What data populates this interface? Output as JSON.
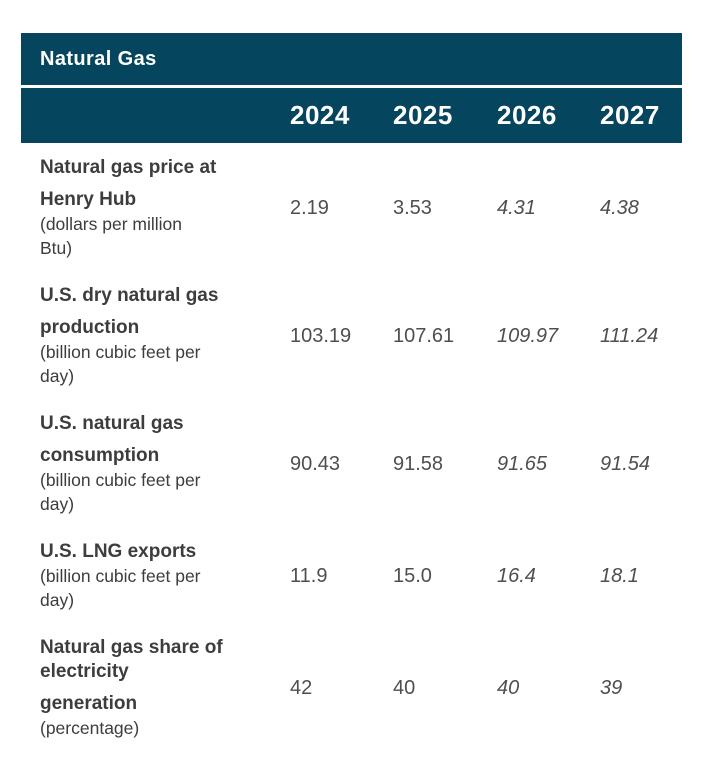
{
  "table": {
    "title": "Natural Gas",
    "theme": {
      "header_bg": "#05455e",
      "header_text": "#ffffff",
      "label_color": "#3d3d3d",
      "value_color": "#4f4f4f"
    },
    "columns": [
      {
        "year": "2024",
        "forecast": false
      },
      {
        "year": "2025",
        "forecast": false
      },
      {
        "year": "2026",
        "forecast": true
      },
      {
        "year": "2027",
        "forecast": true
      }
    ],
    "rows": [
      {
        "label_lines": [
          {
            "text": "Natural gas price at",
            "bold": true,
            "gap": false
          },
          {
            "text": "Henry Hub",
            "bold": true,
            "gap": true
          },
          {
            "text": "(dollars per million",
            "bold": false,
            "gap": false
          },
          {
            "text": "Btu)",
            "bold": false,
            "gap": false
          }
        ],
        "values": [
          "2.19",
          "3.53",
          "4.31",
          "4.38"
        ]
      },
      {
        "label_lines": [
          {
            "text": "U.S. dry natural gas",
            "bold": true,
            "gap": false
          },
          {
            "text": "production",
            "bold": true,
            "gap": true
          },
          {
            "text": "(billion cubic feet per",
            "bold": false,
            "gap": false
          },
          {
            "text": "day)",
            "bold": false,
            "gap": false
          }
        ],
        "values": [
          "103.19",
          "107.61",
          "109.97",
          "111.24"
        ]
      },
      {
        "label_lines": [
          {
            "text": "U.S. natural gas",
            "bold": true,
            "gap": false
          },
          {
            "text": "consumption",
            "bold": true,
            "gap": true
          },
          {
            "text": "(billion cubic feet per",
            "bold": false,
            "gap": false
          },
          {
            "text": "day)",
            "bold": false,
            "gap": false
          }
        ],
        "values": [
          "90.43",
          "91.58",
          "91.65",
          "91.54"
        ]
      },
      {
        "label_lines": [
          {
            "text": "U.S. LNG exports",
            "bold": true,
            "gap": false
          },
          {
            "text": "(billion cubic feet per",
            "bold": false,
            "gap": false
          },
          {
            "text": "day)",
            "bold": false,
            "gap": false
          }
        ],
        "values": [
          "11.9",
          "15.0",
          "16.4",
          "18.1"
        ]
      },
      {
        "label_lines": [
          {
            "text": "Natural gas share of",
            "bold": true,
            "gap": false
          },
          {
            "text": "electricity",
            "bold": true,
            "gap": false
          },
          {
            "text": "generation",
            "bold": true,
            "gap": true
          },
          {
            "text": "(percentage)",
            "bold": false,
            "gap": false
          }
        ],
        "values": [
          "42",
          "40",
          "40",
          "39"
        ]
      }
    ]
  },
  "chart_data": {
    "type": "table",
    "title": "Natural Gas",
    "columns": [
      "2024",
      "2025",
      "2026",
      "2027"
    ],
    "forecast_columns": [
      "2026",
      "2027"
    ],
    "rows": [
      {
        "label": "Natural gas price at Henry Hub (dollars per million Btu)",
        "values": [
          2.19,
          3.53,
          4.31,
          4.38
        ]
      },
      {
        "label": "U.S. dry natural gas production (billion cubic feet per day)",
        "values": [
          103.19,
          107.61,
          109.97,
          111.24
        ]
      },
      {
        "label": "U.S. natural gas consumption (billion cubic feet per day)",
        "values": [
          90.43,
          91.58,
          91.65,
          91.54
        ]
      },
      {
        "label": "U.S. LNG exports (billion cubic feet per day)",
        "values": [
          11.9,
          15.0,
          16.4,
          18.1
        ]
      },
      {
        "label": "Natural gas share of electricity generation (percentage)",
        "values": [
          42,
          40,
          40,
          39
        ]
      }
    ]
  }
}
